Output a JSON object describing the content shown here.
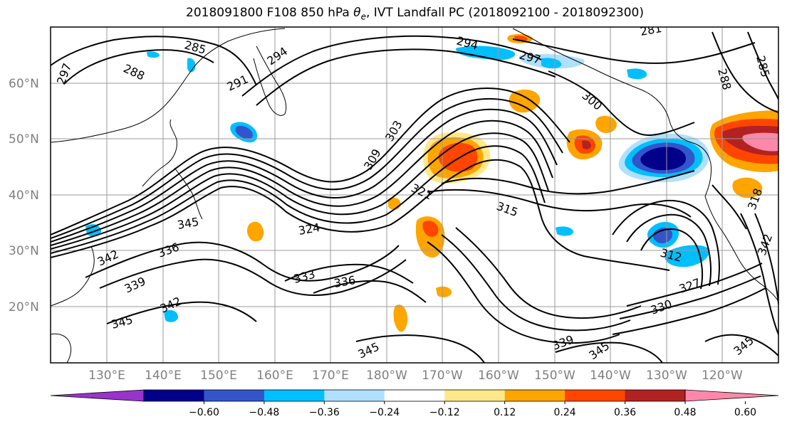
{
  "title_prefix": "2018091800 F108 850 hPa ",
  "title_symbol": "θ",
  "title_subscript": "e",
  "title_suffix": ", IVT Landfall PC (2018092100 - 2018092300)",
  "lat_labels": [
    "60°N",
    "50°N",
    "40°N",
    "30°N",
    "20°N"
  ],
  "lon_labels": [
    "130°E",
    "140°E",
    "150°E",
    "160°E",
    "170°E",
    "180°W",
    "170°W",
    "160°W",
    "150°W",
    "140°W",
    "130°W",
    "120°W"
  ],
  "colorbar": {
    "colors": [
      "#9933cc",
      "#00008b",
      "#3355cc",
      "#00bfff",
      "#b0e0ff",
      "#ffffff",
      "#ffe88a",
      "#ffa500",
      "#ff4500",
      "#b22222",
      "#ff88aa"
    ],
    "tick_labels": [
      "−0.60",
      "−0.48",
      "−0.36",
      "−0.24",
      "−0.12",
      "0.12",
      "0.24",
      "0.36",
      "0.48",
      "0.60"
    ]
  },
  "contour_labels": [
    {
      "text": "285"
    },
    {
      "text": "288"
    },
    {
      "text": "297"
    },
    {
      "text": "291"
    },
    {
      "text": "294"
    },
    {
      "text": "294"
    },
    {
      "text": "297"
    },
    {
      "text": "281"
    },
    {
      "text": "285"
    },
    {
      "text": "288"
    },
    {
      "text": "300"
    },
    {
      "text": "303"
    },
    {
      "text": "309"
    },
    {
      "text": "321"
    },
    {
      "text": "315"
    },
    {
      "text": "324"
    },
    {
      "text": "345"
    },
    {
      "text": "342"
    },
    {
      "text": "336"
    },
    {
      "text": "339"
    },
    {
      "text": "342"
    },
    {
      "text": "345"
    },
    {
      "text": "333"
    },
    {
      "text": "336"
    },
    {
      "text": "312"
    },
    {
      "text": "327"
    },
    {
      "text": "330"
    },
    {
      "text": "339"
    },
    {
      "text": "345"
    },
    {
      "text": "345"
    },
    {
      "text": "345"
    },
    {
      "text": "318"
    },
    {
      "text": "342"
    }
  ]
}
